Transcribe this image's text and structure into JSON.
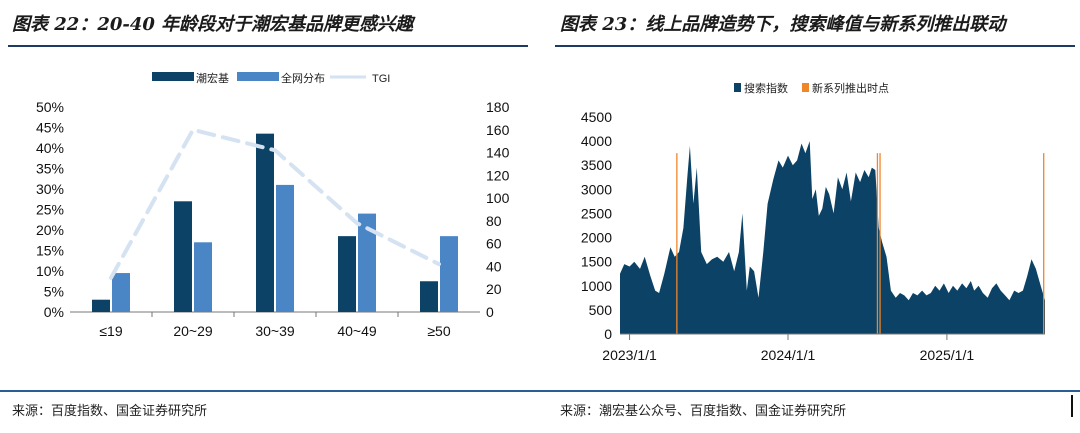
{
  "left_title": "图表 22：20-40 年龄段对于潮宏基品牌更感兴趣",
  "right_title": "图表 23：线上品牌造势下，搜索峰值与新系列推出联动",
  "left_source": "来源：百度指数、国金证券研究所",
  "right_source": "来源：潮宏基公众号、百度指数、国金证券研究所",
  "colors": {
    "dark_blue": "#0b4266",
    "mid_blue": "#4a86c5",
    "light_blue": "#d4e2f2",
    "orange": "#f0862a",
    "rule": "#1f3b63"
  },
  "chart_data": [
    {
      "type": "bar",
      "categories": [
        "≤19",
        "20~29",
        "30~39",
        "40~49",
        "≥50"
      ],
      "series": [
        {
          "name": "潮宏基",
          "values": [
            3,
            27,
            43.5,
            18.5,
            7.5
          ],
          "axis": "left",
          "render": "bar"
        },
        {
          "name": "全网分布",
          "values": [
            9.5,
            17,
            31,
            24,
            18.5
          ],
          "axis": "left",
          "render": "bar"
        },
        {
          "name": "TGI",
          "values": [
            30,
            160,
            142,
            78,
            42
          ],
          "axis": "right",
          "render": "dashed-line"
        }
      ],
      "yleft": {
        "range": [
          0,
          50
        ],
        "ticks": [
          "0%",
          "5%",
          "10%",
          "15%",
          "20%",
          "25%",
          "30%",
          "35%",
          "40%",
          "45%",
          "50%"
        ]
      },
      "yright": {
        "range": [
          0,
          180
        ],
        "ticks": [
          "0",
          "20",
          "40",
          "60",
          "80",
          "100",
          "120",
          "140",
          "160",
          "180"
        ]
      },
      "legend": "top",
      "grid": false
    },
    {
      "type": "area",
      "series_name": "搜索指数",
      "marker_name": "新系列推出时点",
      "x_start": "2022-12-10",
      "x_end": "2025-08-15",
      "x_ticks": [
        "2023/1/1",
        "2024/1/1",
        "2025/1/1"
      ],
      "ylim": [
        0,
        4500
      ],
      "y_ticks": [
        "0",
        "500",
        "1000",
        "1500",
        "2000",
        "2500",
        "3000",
        "3500",
        "4000",
        "4500"
      ],
      "points": [
        [
          "2022-12-10",
          1250
        ],
        [
          "2022-12-20",
          1450
        ],
        [
          "2023-01-01",
          1400
        ],
        [
          "2023-01-12",
          1500
        ],
        [
          "2023-01-25",
          1350
        ],
        [
          "2023-02-05",
          1600
        ],
        [
          "2023-02-18",
          1200
        ],
        [
          "2023-03-01",
          900
        ],
        [
          "2023-03-10",
          850
        ],
        [
          "2023-03-22",
          1250
        ],
        [
          "2023-04-05",
          1800
        ],
        [
          "2023-04-15",
          1600
        ],
        [
          "2023-04-25",
          1700
        ],
        [
          "2023-05-05",
          2200
        ],
        [
          "2023-05-14",
          3250
        ],
        [
          "2023-05-20",
          3900
        ],
        [
          "2023-05-28",
          2700
        ],
        [
          "2023-06-05",
          3450
        ],
        [
          "2023-06-15",
          1700
        ],
        [
          "2023-06-28",
          1450
        ],
        [
          "2023-07-10",
          1550
        ],
        [
          "2023-07-22",
          1600
        ],
        [
          "2023-08-05",
          1500
        ],
        [
          "2023-08-18",
          1700
        ],
        [
          "2023-08-30",
          1300
        ],
        [
          "2023-09-10",
          1700
        ],
        [
          "2023-09-18",
          2500
        ],
        [
          "2023-09-28",
          900
        ],
        [
          "2023-10-05",
          1400
        ],
        [
          "2023-10-15",
          1300
        ],
        [
          "2023-10-25",
          750
        ],
        [
          "2023-11-05",
          1700
        ],
        [
          "2023-11-15",
          2700
        ],
        [
          "2023-11-28",
          3200
        ],
        [
          "2023-12-10",
          3600
        ],
        [
          "2023-12-20",
          3450
        ],
        [
          "2024-01-01",
          3700
        ],
        [
          "2024-01-12",
          3500
        ],
        [
          "2024-01-22",
          3600
        ],
        [
          "2024-02-01",
          3950
        ],
        [
          "2024-02-10",
          3750
        ],
        [
          "2024-02-20",
          4000
        ],
        [
          "2024-02-26",
          2800
        ],
        [
          "2024-03-05",
          3000
        ],
        [
          "2024-03-12",
          2450
        ],
        [
          "2024-03-20",
          2600
        ],
        [
          "2024-03-28",
          3050
        ],
        [
          "2024-04-05",
          2900
        ],
        [
          "2024-04-15",
          2500
        ],
        [
          "2024-04-25",
          3250
        ],
        [
          "2024-05-05",
          3000
        ],
        [
          "2024-05-15",
          3350
        ],
        [
          "2024-05-25",
          2750
        ],
        [
          "2024-06-05",
          3350
        ],
        [
          "2024-06-15",
          3150
        ],
        [
          "2024-06-25",
          3400
        ],
        [
          "2024-07-05",
          3250
        ],
        [
          "2024-07-12",
          3450
        ],
        [
          "2024-07-20",
          3400
        ],
        [
          "2024-07-28",
          2200
        ],
        [
          "2024-08-05",
          1900
        ],
        [
          "2024-08-15",
          1600
        ],
        [
          "2024-08-25",
          900
        ],
        [
          "2024-09-05",
          750
        ],
        [
          "2024-09-15",
          850
        ],
        [
          "2024-09-25",
          800
        ],
        [
          "2024-10-05",
          700
        ],
        [
          "2024-10-15",
          850
        ],
        [
          "2024-10-25",
          800
        ],
        [
          "2024-11-05",
          900
        ],
        [
          "2024-11-15",
          800
        ],
        [
          "2024-11-25",
          850
        ],
        [
          "2024-12-05",
          1000
        ],
        [
          "2024-12-15",
          900
        ],
        [
          "2024-12-25",
          1050
        ],
        [
          "2025-01-05",
          850
        ],
        [
          "2025-01-15",
          1000
        ],
        [
          "2025-01-25",
          900
        ],
        [
          "2025-02-05",
          1050
        ],
        [
          "2025-02-15",
          950
        ],
        [
          "2025-02-25",
          1100
        ],
        [
          "2025-03-05",
          900
        ],
        [
          "2025-03-15",
          1000
        ],
        [
          "2025-03-25",
          850
        ],
        [
          "2025-04-05",
          750
        ],
        [
          "2025-04-15",
          950
        ],
        [
          "2025-04-25",
          1050
        ],
        [
          "2025-05-05",
          900
        ],
        [
          "2025-05-15",
          800
        ],
        [
          "2025-05-25",
          700
        ],
        [
          "2025-06-05",
          900
        ],
        [
          "2025-06-15",
          850
        ],
        [
          "2025-06-25",
          900
        ],
        [
          "2025-07-05",
          1200
        ],
        [
          "2025-07-15",
          1550
        ],
        [
          "2025-07-25",
          1350
        ],
        [
          "2025-08-05",
          1000
        ],
        [
          "2025-08-15",
          700
        ]
      ],
      "launch_dates": [
        "2023-04-20",
        "2024-07-25",
        "2024-07-31",
        "2025-08-12"
      ],
      "legend": "top-left",
      "grid": false
    }
  ]
}
